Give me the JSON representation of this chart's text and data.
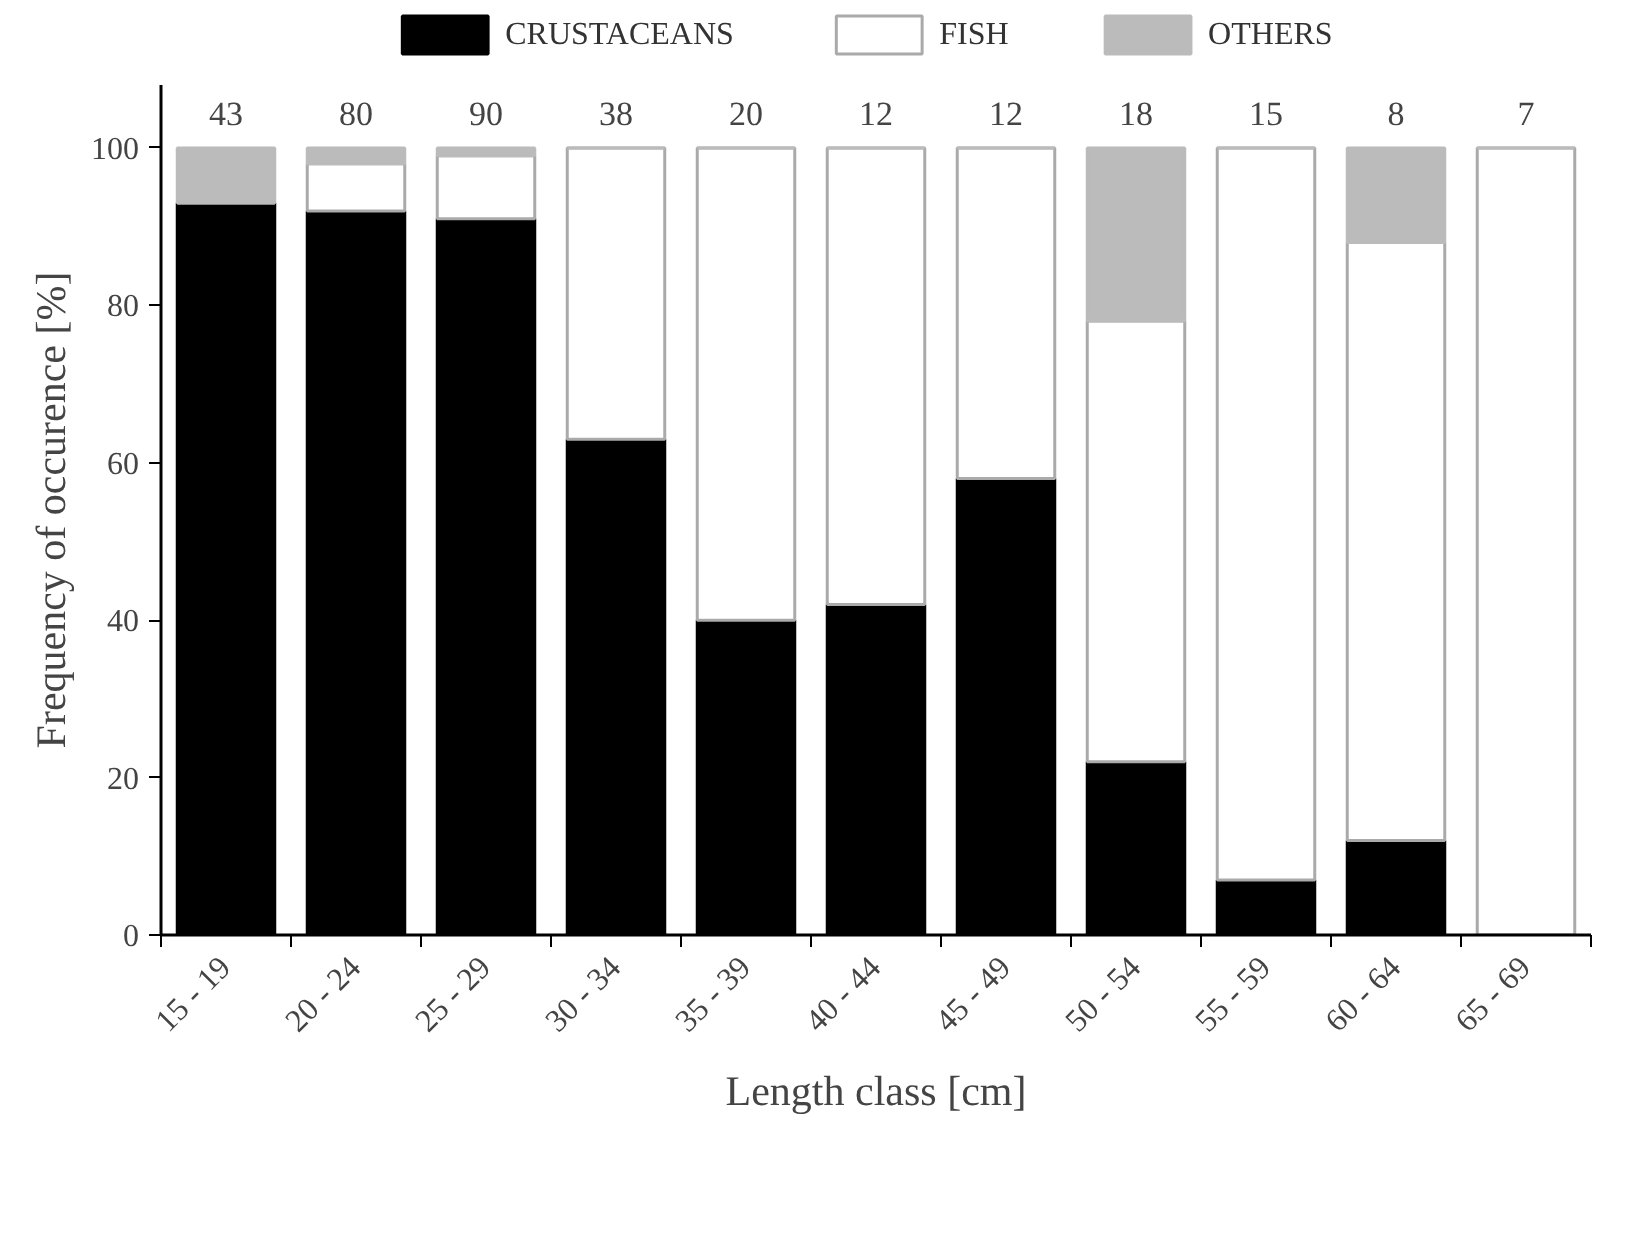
{
  "chart_data": {
    "type": "bar",
    "stacked": true,
    "xlabel": "Length class [cm]",
    "ylabel": "Frequency of occurence [%]",
    "categories": [
      "15 - 19",
      "20 - 24",
      "25 - 29",
      "30 - 34",
      "35 - 39",
      "40 - 44",
      "45 - 49",
      "50 - 54",
      "55 - 59",
      "60 - 64",
      "65 - 69"
    ],
    "series": [
      {
        "name": "CRUSTACEANS",
        "color": "#000000",
        "values": [
          93,
          92,
          91,
          63,
          40,
          42,
          58,
          22,
          7,
          12,
          0
        ]
      },
      {
        "name": "FISH",
        "color": "#ffffff",
        "values": [
          0,
          6,
          8,
          37,
          60,
          58,
          42,
          56,
          93,
          76,
          100
        ]
      },
      {
        "name": "OTHERS",
        "color": "#bbbbbb",
        "values": [
          7,
          2,
          1,
          0,
          0,
          0,
          0,
          22,
          0,
          12,
          0
        ]
      }
    ],
    "ylim": [
      0,
      108
    ],
    "yticks": [
      0,
      20,
      40,
      60,
      80,
      100
    ],
    "grid": false,
    "legend": "top",
    "annotations": [
      "43",
      "80",
      "90",
      "38",
      "20",
      "12",
      "12",
      "18",
      "15",
      "8",
      "7"
    ]
  }
}
